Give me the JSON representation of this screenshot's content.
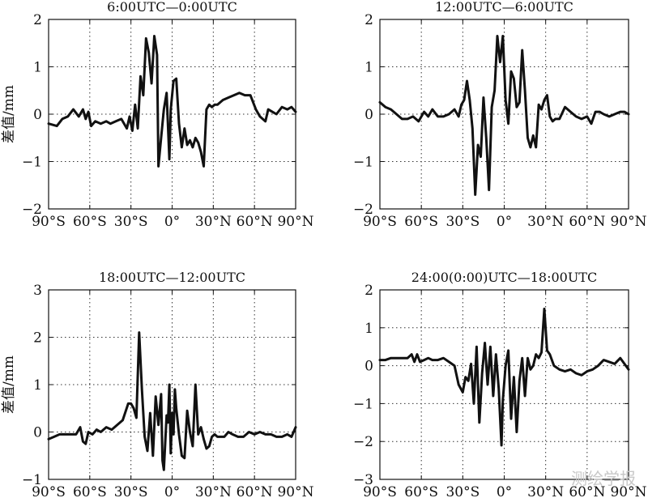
{
  "watermark": "测绘学报",
  "chart_data": [
    {
      "type": "line",
      "title": "6:00UTC—0:00UTC",
      "ylabel": "差值/mm",
      "xlim": [
        -90,
        90
      ],
      "ylim": [
        -2,
        2
      ],
      "xticks": [
        -90,
        -60,
        -30,
        0,
        30,
        60,
        90
      ],
      "xtick_labels": [
        "90°S",
        "60°S",
        "30°S",
        "0°",
        "30°N",
        "60°N",
        "90°N"
      ],
      "yticks": [
        -2,
        -1,
        0,
        1,
        2
      ],
      "ytick_labels": [
        "−2",
        "−1",
        "0",
        "1",
        "2"
      ],
      "grid": true,
      "x": [
        -90,
        -84,
        -80,
        -76,
        -72,
        -68,
        -65,
        -63,
        -61,
        -59,
        -56,
        -52,
        -48,
        -45,
        -41,
        -37,
        -33,
        -31,
        -29,
        -27,
        -25,
        -23,
        -21,
        -19,
        -17,
        -15,
        -13,
        -11,
        -10,
        -8,
        -7,
        -6,
        -4,
        -2,
        -1,
        1,
        3,
        5,
        7,
        9,
        11,
        13,
        15,
        17,
        19,
        21,
        23,
        25,
        27,
        29,
        31,
        33,
        37,
        41,
        45,
        49,
        53,
        57,
        61,
        64,
        66,
        68,
        70,
        73,
        76,
        80,
        84,
        87,
        90
      ],
      "y": [
        -0.2,
        -0.25,
        -0.1,
        -0.05,
        0.1,
        -0.05,
        0.1,
        -0.1,
        0.05,
        -0.25,
        -0.15,
        -0.2,
        -0.15,
        -0.2,
        -0.15,
        -0.1,
        -0.3,
        -0.05,
        -0.35,
        0.2,
        -0.3,
        0.8,
        0.4,
        1.6,
        1.3,
        0.65,
        1.65,
        1.25,
        -1.1,
        -0.5,
        -0.2,
        0.1,
        0.45,
        -0.95,
        0.1,
        0.7,
        0.75,
        -0.2,
        -0.7,
        -0.3,
        -0.65,
        -0.55,
        -0.7,
        -0.5,
        -0.6,
        -0.8,
        -1.1,
        0.1,
        0.2,
        0.15,
        0.2,
        0.2,
        0.3,
        0.35,
        0.4,
        0.45,
        0.4,
        0.4,
        0.1,
        -0.05,
        -0.1,
        -0.15,
        0.1,
        0.05,
        0.0,
        0.15,
        0.1,
        0.15,
        0.05
      ]
    },
    {
      "type": "line",
      "title": "12:00UTC—6:00UTC",
      "ylabel": "",
      "xlim": [
        -90,
        90
      ],
      "ylim": [
        -2,
        2
      ],
      "xticks": [
        -90,
        -60,
        -30,
        0,
        30,
        60,
        90
      ],
      "xtick_labels": [
        "90°S",
        "60°S",
        "30°S",
        "0°",
        "30°N",
        "60°N",
        "90°N"
      ],
      "yticks": [
        -2,
        -1,
        0,
        1,
        2
      ],
      "ytick_labels": [
        "−2",
        "−1",
        "0",
        "1",
        "2"
      ],
      "grid": true,
      "x": [
        -90,
        -86,
        -82,
        -78,
        -74,
        -70,
        -66,
        -62,
        -58,
        -55,
        -52,
        -48,
        -44,
        -40,
        -36,
        -33,
        -31,
        -29,
        -27,
        -25,
        -23,
        -21,
        -19,
        -17,
        -15,
        -13,
        -11,
        -9,
        -7,
        -5,
        -3,
        -1,
        1,
        3,
        5,
        7,
        9,
        11,
        13,
        15,
        17,
        19,
        21,
        23,
        25,
        27,
        29,
        31,
        33,
        35,
        37,
        40,
        44,
        48,
        52,
        56,
        60,
        63,
        66,
        69,
        72,
        76,
        80,
        84,
        87,
        90
      ],
      "y": [
        0.25,
        0.15,
        0.1,
        0.0,
        -0.1,
        -0.1,
        -0.05,
        -0.15,
        0.05,
        -0.05,
        0.1,
        -0.05,
        -0.05,
        0.0,
        0.1,
        -0.05,
        0.2,
        0.3,
        0.7,
        0.3,
        -0.3,
        -1.7,
        -0.65,
        -0.9,
        0.35,
        -0.5,
        -1.6,
        0.15,
        0.5,
        1.65,
        1.1,
        1.65,
        0.3,
        -0.2,
        0.9,
        0.75,
        0.15,
        0.25,
        1.35,
        0.5,
        -0.5,
        -0.7,
        -0.45,
        -0.7,
        0.2,
        0.1,
        0.3,
        0.4,
        -0.05,
        -0.15,
        -0.1,
        -0.1,
        0.15,
        0.05,
        -0.05,
        -0.1,
        -0.05,
        -0.2,
        0.05,
        0.05,
        0.0,
        -0.05,
        0.0,
        0.05,
        0.05,
        0.0
      ]
    },
    {
      "type": "line",
      "title": "18:00UTC—12:00UTC",
      "ylabel": "差值/mm",
      "xlim": [
        -90,
        90
      ],
      "ylim": [
        -1,
        3
      ],
      "xticks": [
        -90,
        -60,
        -30,
        0,
        30,
        60,
        90
      ],
      "xtick_labels": [
        "90°S",
        "60°S",
        "30°S",
        "0°",
        "30°N",
        "60°N",
        "90°N"
      ],
      "yticks": [
        -1,
        0,
        1,
        2,
        3
      ],
      "ytick_labels": [
        "−1",
        "0",
        "1",
        "2",
        "3"
      ],
      "grid": true,
      "x": [
        -90,
        -86,
        -82,
        -78,
        -74,
        -70,
        -67,
        -65,
        -63,
        -61,
        -58,
        -55,
        -52,
        -48,
        -44,
        -40,
        -36,
        -32,
        -30,
        -28,
        -26,
        -24,
        -22,
        -20,
        -18,
        -16,
        -14,
        -12,
        -10,
        -8,
        -7,
        -6,
        -4,
        -3,
        -2,
        -1,
        0,
        1,
        2,
        3,
        5,
        7,
        9,
        11,
        13,
        15,
        17,
        19,
        21,
        23,
        25,
        27,
        29,
        31,
        33,
        35,
        38,
        41,
        44,
        48,
        52,
        56,
        60,
        64,
        68,
        72,
        76,
        80,
        84,
        87,
        90
      ],
      "y": [
        -0.15,
        -0.1,
        -0.05,
        -0.05,
        -0.05,
        -0.05,
        0.1,
        -0.2,
        -0.25,
        0.0,
        -0.05,
        0.05,
        0.0,
        0.1,
        0.05,
        0.15,
        0.25,
        0.6,
        0.6,
        0.5,
        0.3,
        2.1,
        0.9,
        -0.1,
        -0.4,
        0.4,
        -0.5,
        0.75,
        0.15,
        0.8,
        -0.6,
        -0.8,
        0.35,
        0.2,
        1.0,
        -0.45,
        0.4,
        -0.05,
        0.9,
        0.5,
        -0.05,
        -0.5,
        -0.55,
        0.45,
        0.0,
        -0.3,
        1.0,
        -0.05,
        0.1,
        -0.15,
        -0.35,
        -0.3,
        -0.1,
        -0.05,
        -0.1,
        -0.1,
        -0.1,
        0.0,
        -0.05,
        -0.1,
        -0.1,
        0.0,
        -0.05,
        0.0,
        -0.05,
        -0.05,
        -0.1,
        -0.1,
        -0.05,
        -0.1,
        0.1
      ]
    },
    {
      "type": "line",
      "title": "24:00(0:00)UTC—18:00UTC",
      "ylabel": "",
      "xlim": [
        -90,
        90
      ],
      "ylim": [
        -3,
        2
      ],
      "xticks": [
        -90,
        -60,
        -30,
        0,
        30,
        60,
        90
      ],
      "xtick_labels": [
        "90°S",
        "60°S",
        "30°S",
        "0°",
        "30°N",
        "60°N",
        "90°N"
      ],
      "yticks": [
        -3,
        -2,
        -1,
        0,
        1,
        2
      ],
      "ytick_labels": [
        "−3",
        "−2",
        "−1",
        "0",
        "1",
        "2"
      ],
      "grid": true,
      "x": [
        -90,
        -86,
        -82,
        -78,
        -74,
        -70,
        -67,
        -65,
        -63,
        -61,
        -58,
        -55,
        -52,
        -48,
        -44,
        -40,
        -36,
        -33,
        -30,
        -28,
        -26,
        -24,
        -22,
        -20,
        -18,
        -16,
        -14,
        -12,
        -10,
        -8,
        -6,
        -4,
        -2,
        -1,
        1,
        3,
        5,
        7,
        9,
        11,
        13,
        15,
        17,
        19,
        21,
        23,
        25,
        27,
        29,
        31,
        33,
        36,
        40,
        44,
        48,
        52,
        56,
        60,
        64,
        68,
        72,
        76,
        80,
        84,
        87,
        90
      ],
      "y": [
        0.15,
        0.15,
        0.2,
        0.2,
        0.2,
        0.2,
        0.3,
        0.1,
        0.3,
        0.1,
        0.15,
        0.2,
        0.15,
        0.15,
        0.2,
        0.1,
        0.0,
        -0.5,
        -0.7,
        -0.3,
        -0.4,
        0.05,
        -1.0,
        0.5,
        -1.5,
        -0.2,
        0.6,
        -0.5,
        0.5,
        -0.8,
        0.3,
        -0.6,
        -2.1,
        -0.9,
        0.0,
        0.4,
        -1.4,
        -0.3,
        -1.75,
        -0.4,
        0.2,
        -0.8,
        0.2,
        -0.1,
        0.0,
        0.3,
        0.2,
        0.35,
        1.5,
        0.4,
        0.3,
        0.0,
        -0.1,
        -0.15,
        -0.1,
        -0.2,
        -0.25,
        -0.15,
        -0.1,
        0.0,
        0.15,
        0.1,
        0.05,
        0.2,
        0.05,
        -0.1
      ]
    }
  ]
}
